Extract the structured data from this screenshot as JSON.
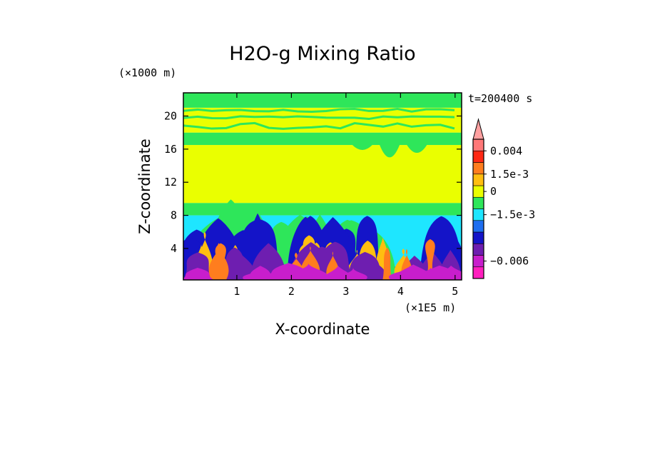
{
  "chart_data": {
    "type": "heatmap",
    "title": "H2O-g Mixing Ratio",
    "time_label": "t=200400 s",
    "x": {
      "label": "X-coordinate",
      "units": "(×1E5 m)",
      "ticks": [
        1,
        2,
        3,
        4,
        5
      ],
      "range": [
        0.02,
        5.12
      ]
    },
    "y": {
      "label": "Z-coordinate",
      "units": "(×1000 m)",
      "ticks": [
        4,
        8,
        12,
        16,
        20
      ],
      "range": [
        0.2,
        22.8
      ]
    },
    "colorbar": {
      "levels": [
        {
          "color": "#ff1ebe"
        },
        {
          "color": "#c81ecc"
        },
        {
          "color": "#6e1eb0"
        },
        {
          "color": "#1414c8"
        },
        {
          "color": "#1e6ef0"
        },
        {
          "color": "#1ee6ff"
        },
        {
          "color": "#2ee65a"
        },
        {
          "color": "#eaff00"
        },
        {
          "color": "#ffbe10"
        },
        {
          "color": "#ff7d1e"
        },
        {
          "color": "#ff2814"
        },
        {
          "color": "#ff7878"
        },
        {
          "color": "#ffa0a0"
        }
      ],
      "labels": [
        {
          "text": "0.004",
          "level": 11
        },
        {
          "text": "1.5e-3",
          "level": 9
        },
        {
          "text": "0",
          "level": 7.5
        },
        {
          "text": "−1.5e-3",
          "level": 5.5
        },
        {
          "text": "−0.006",
          "level": 1.5
        }
      ]
    },
    "bands": [
      {
        "z": [
          0.2,
          1.8
        ],
        "color": "#6e1eb0"
      },
      {
        "z": [
          1.8,
          8.0
        ],
        "color": "#1ee6ff"
      },
      {
        "z": [
          8.0,
          9.5
        ],
        "color": "#2ee65a"
      },
      {
        "z": [
          9.5,
          16.5
        ],
        "color": "#eaff00"
      },
      {
        "z": [
          16.5,
          18.0
        ],
        "color": "#2ee65a"
      },
      {
        "z": [
          18.0,
          21.0
        ],
        "color": "#eaff00"
      },
      {
        "z": [
          21.0,
          22.8
        ],
        "color": "#2ee65a"
      }
    ]
  }
}
